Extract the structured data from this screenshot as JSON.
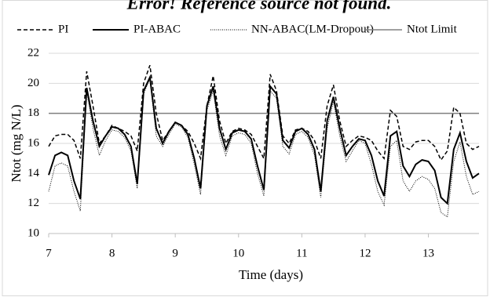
{
  "chart_data": {
    "type": "line",
    "title": "Error! Reference source not found.",
    "xlabel": "Time (days)",
    "ylabel": "Ntot (mg N/L)",
    "x": [
      7.0,
      7.1,
      7.2,
      7.3,
      7.4,
      7.5,
      7.6,
      7.7,
      7.8,
      7.9,
      8.0,
      8.1,
      8.2,
      8.3,
      8.4,
      8.5,
      8.6,
      8.7,
      8.8,
      8.9,
      9.0,
      9.1,
      9.2,
      9.3,
      9.4,
      9.5,
      9.6,
      9.7,
      9.8,
      9.9,
      10.0,
      10.1,
      10.2,
      10.3,
      10.4,
      10.5,
      10.6,
      10.7,
      10.8,
      10.9,
      11.0,
      11.1,
      11.2,
      11.3,
      11.4,
      11.5,
      11.6,
      11.7,
      11.8,
      11.9,
      12.0,
      12.1,
      12.2,
      12.3,
      12.4,
      12.5,
      12.6,
      12.7,
      12.8,
      12.9,
      13.0,
      13.1,
      13.2,
      13.3,
      13.4,
      13.5,
      13.6,
      13.7,
      13.8
    ],
    "series": [
      {
        "name": "PI",
        "color": "#000000",
        "dash": "5,3",
        "width": 1.5,
        "values": [
          15.8,
          16.5,
          16.6,
          16.6,
          16.2,
          15.0,
          20.8,
          18.5,
          16.0,
          16.5,
          17.2,
          17.0,
          16.8,
          16.5,
          15.5,
          20.0,
          21.2,
          18.0,
          16.2,
          16.8,
          17.4,
          17.2,
          16.8,
          16.0,
          15.0,
          18.5,
          20.5,
          17.5,
          16.0,
          16.8,
          17.0,
          16.9,
          16.6,
          15.8,
          15.0,
          20.6,
          19.5,
          16.5,
          16.0,
          16.9,
          17.0,
          16.8,
          16.2,
          15.0,
          18.5,
          19.9,
          17.5,
          15.8,
          16.2,
          16.5,
          16.4,
          16.2,
          15.5,
          15.0,
          18.2,
          17.8,
          15.8,
          15.6,
          16.1,
          16.2,
          16.2,
          15.8,
          14.9,
          15.5,
          18.4,
          18.0,
          16.0,
          15.6,
          15.8
        ]
      },
      {
        "name": "PI-ABAC",
        "color": "#000000",
        "dash": "none",
        "width": 2,
        "values": [
          13.9,
          15.2,
          15.4,
          15.2,
          13.5,
          12.3,
          19.7,
          17.5,
          15.8,
          16.5,
          17.1,
          17.0,
          16.6,
          15.8,
          13.3,
          19.5,
          20.4,
          17.0,
          16.0,
          16.8,
          17.4,
          17.2,
          16.6,
          15.0,
          13.0,
          18.5,
          19.8,
          17.0,
          15.6,
          16.7,
          16.9,
          16.8,
          16.3,
          14.5,
          12.9,
          19.8,
          19.3,
          16.2,
          15.7,
          16.8,
          17.0,
          16.6,
          15.6,
          12.8,
          17.5,
          19.1,
          17.0,
          15.2,
          15.8,
          16.3,
          16.2,
          15.2,
          13.5,
          12.5,
          16.5,
          16.8,
          14.5,
          13.8,
          14.6,
          14.9,
          14.8,
          14.2,
          12.4,
          12.0,
          15.6,
          16.7,
          14.8,
          13.7,
          14.0
        ]
      },
      {
        "name": "NN-ABAC(LM-Dropout)",
        "color": "#000000",
        "dash": "1,1.5",
        "width": 1,
        "values": [
          12.8,
          14.5,
          14.7,
          14.5,
          12.8,
          11.5,
          19.5,
          17.0,
          15.2,
          16.2,
          16.9,
          16.8,
          16.4,
          15.5,
          13.0,
          19.3,
          20.3,
          16.5,
          15.8,
          16.6,
          17.3,
          17.1,
          16.4,
          14.6,
          12.6,
          18.2,
          19.5,
          16.5,
          15.2,
          16.5,
          16.7,
          16.6,
          16.0,
          14.0,
          12.5,
          19.5,
          19.0,
          15.8,
          15.3,
          16.6,
          16.8,
          16.4,
          15.2,
          12.4,
          17.0,
          18.8,
          16.5,
          14.8,
          15.5,
          16.2,
          16.0,
          14.6,
          12.8,
          11.9,
          15.8,
          16.2,
          13.5,
          12.8,
          13.5,
          13.8,
          13.6,
          13.0,
          11.4,
          11.1,
          14.8,
          16.1,
          13.8,
          12.6,
          12.8
        ]
      }
    ],
    "hline": {
      "name": "Ntot Limit",
      "value": 18,
      "color": "#808080"
    },
    "xlim": [
      7,
      13.8
    ],
    "xticks": [
      7,
      8,
      9,
      10,
      11,
      12,
      13
    ],
    "ylim": [
      10,
      22
    ],
    "yticks": [
      10,
      12,
      14,
      16,
      18,
      20,
      22
    ],
    "grid": true,
    "legend": "top"
  }
}
